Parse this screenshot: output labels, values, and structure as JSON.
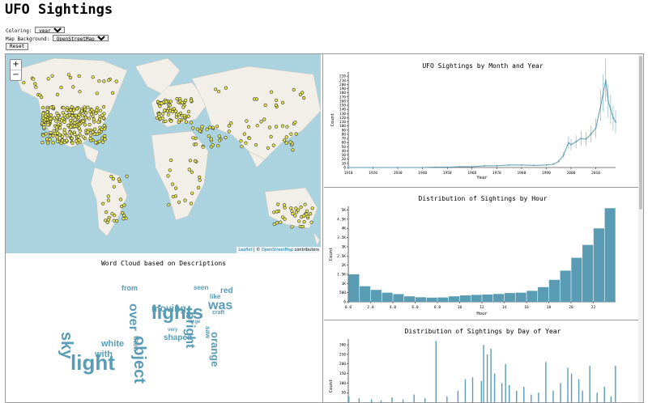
{
  "page": {
    "title": "UFO Sightings"
  },
  "controls": {
    "coloring_label": "Coloring:",
    "coloring_value": "year",
    "background_label": "Map Background:",
    "background_value": "OpenStreetMap",
    "reset_label": "Reset"
  },
  "map": {
    "zoom_in": "+",
    "zoom_out": "−",
    "attribution_leaflet": "Leaflet",
    "attribution_sep": " | © ",
    "attribution_osm": "OpenStreetMap",
    "attribution_rest": " contributors",
    "colors": {
      "ocean": "#aad3df",
      "land": "#f2efe9",
      "point": "#e8e84a",
      "point_stroke": "#333333"
    }
  },
  "word_cloud": {
    "title": "Word Cloud based on Descriptions",
    "color": "#5a9cb4",
    "words": [
      "light",
      "lights",
      "sky",
      "object",
      "bright",
      "was",
      "moving",
      "white",
      "with",
      "over",
      "orange",
      "shaped",
      "red",
      "from",
      "seen",
      "like",
      "then",
      "saw",
      "craft",
      "very",
      "large"
    ]
  },
  "charts": {
    "colors": {
      "bar": "#5a9cb4",
      "line": "#5a9cb4"
    }
  },
  "chart_data": [
    {
      "type": "line",
      "title": "UFO Sightings by Month and Year",
      "xlabel": "Year",
      "ylabel": "Count",
      "xlim": [
        1910,
        2018
      ],
      "ylim": [
        0,
        230
      ],
      "x_ticks": [
        "1910",
        "1920",
        "1930",
        "1940",
        "1950",
        "1960",
        "1970",
        "1980",
        "1990",
        "2000",
        "2010"
      ],
      "y_ticks": [
        "0",
        "10",
        "20",
        "30",
        "40",
        "50",
        "60",
        "70",
        "80",
        "90",
        "100",
        "110",
        "120",
        "130",
        "140",
        "150",
        "160",
        "170",
        "180",
        "190",
        "200",
        "210",
        "220"
      ],
      "x": [
        1910,
        1920,
        1930,
        1940,
        1945,
        1950,
        1955,
        1960,
        1965,
        1970,
        1975,
        1980,
        1985,
        1990,
        1993,
        1995,
        1997,
        1999,
        2000,
        2002,
        2004,
        2006,
        2008,
        2010,
        2012,
        2013,
        2014,
        2015,
        2016,
        2017,
        2018
      ],
      "y": [
        0,
        0,
        0,
        0,
        1,
        1,
        2,
        2,
        4,
        4,
        6,
        6,
        5,
        6,
        8,
        15,
        30,
        60,
        55,
        62,
        70,
        68,
        80,
        95,
        150,
        180,
        210,
        160,
        140,
        120,
        110
      ]
    },
    {
      "type": "bar",
      "title": "Distribution of Sightings by Hour",
      "xlabel": "Hour",
      "ylabel": "Count",
      "ylim": [
        0,
        5200
      ],
      "x_ticks": [
        "0.0",
        "2.0",
        "4.0",
        "6.0",
        "8.0",
        "10",
        "12",
        "14",
        "16",
        "18",
        "20",
        "22"
      ],
      "y_ticks": [
        "0",
        "500",
        "1K",
        "1.5K",
        "2K",
        "2.5K",
        "3K",
        "3.5K",
        "4K",
        "4.5K",
        "5K"
      ],
      "categories": [
        "0",
        "1",
        "2",
        "3",
        "4",
        "5",
        "6",
        "7",
        "8",
        "9",
        "10",
        "11",
        "12",
        "13",
        "14",
        "15",
        "16",
        "17",
        "18",
        "19",
        "20",
        "21",
        "22",
        "23"
      ],
      "values": [
        1500,
        850,
        650,
        500,
        420,
        300,
        250,
        230,
        240,
        300,
        350,
        380,
        400,
        430,
        480,
        500,
        600,
        800,
        1200,
        1700,
        2400,
        3100,
        4000,
        5100
      ]
    },
    {
      "type": "bar",
      "title": "Distribution of Sightings by Day of Year",
      "xlabel": "",
      "ylabel": "Count",
      "ylim": [
        0,
        330
      ],
      "y_ticks": [
        "50",
        "100",
        "150",
        "200",
        "250",
        "300"
      ],
      "x": [
        1,
        15,
        32,
        45,
        60,
        75,
        90,
        105,
        120,
        135,
        150,
        160,
        170,
        182,
        185,
        190,
        195,
        200,
        210,
        215,
        220,
        230,
        240,
        250,
        260,
        270,
        280,
        290,
        300,
        305,
        315,
        320,
        330,
        340,
        350,
        359,
        365
      ],
      "values": [
        30,
        20,
        15,
        10,
        25,
        15,
        40,
        20,
        320,
        30,
        60,
        120,
        130,
        110,
        300,
        250,
        280,
        150,
        100,
        200,
        90,
        60,
        80,
        40,
        50,
        210,
        60,
        100,
        180,
        150,
        120,
        60,
        190,
        50,
        80,
        30,
        190
      ]
    }
  ]
}
